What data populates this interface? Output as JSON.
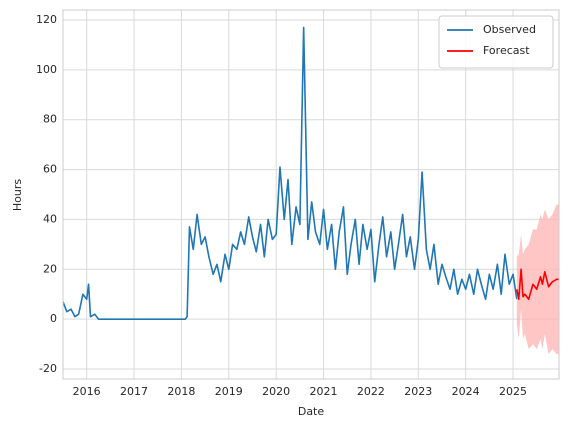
{
  "chart_data": {
    "type": "line",
    "x_label": "Date",
    "y_label": "Hours",
    "xlim": [
      2015.5,
      2025.97
    ],
    "xticks": [
      2016,
      2017,
      2018,
      2019,
      2020,
      2021,
      2022,
      2023,
      2024,
      2025
    ],
    "ylim": [
      -24,
      124
    ],
    "yticks": [
      -20,
      0,
      20,
      40,
      60,
      80,
      100,
      120
    ],
    "grid": true,
    "legend_position": "upper-right",
    "series": [
      {
        "name": "Observed",
        "color": "#1f77b4",
        "x": [
          2015.5,
          2015.58,
          2015.67,
          2015.75,
          2015.83,
          2015.92,
          2016.0,
          2016.04,
          2016.08,
          2016.17,
          2016.25,
          2018.08,
          2018.12,
          2018.17,
          2018.25,
          2018.33,
          2018.42,
          2018.5,
          2018.58,
          2018.67,
          2018.75,
          2018.83,
          2018.92,
          2019.0,
          2019.08,
          2019.17,
          2019.25,
          2019.33,
          2019.42,
          2019.5,
          2019.58,
          2019.67,
          2019.75,
          2019.83,
          2019.92,
          2020.0,
          2020.08,
          2020.17,
          2020.25,
          2020.33,
          2020.42,
          2020.5,
          2020.58,
          2020.67,
          2020.75,
          2020.83,
          2020.92,
          2021.0,
          2021.08,
          2021.17,
          2021.25,
          2021.33,
          2021.42,
          2021.5,
          2021.58,
          2021.67,
          2021.75,
          2021.83,
          2021.92,
          2022.0,
          2022.08,
          2022.17,
          2022.25,
          2022.33,
          2022.42,
          2022.5,
          2022.58,
          2022.67,
          2022.75,
          2022.83,
          2022.92,
          2023.0,
          2023.08,
          2023.17,
          2023.25,
          2023.33,
          2023.42,
          2023.5,
          2023.58,
          2023.67,
          2023.75,
          2023.83,
          2023.92,
          2024.0,
          2024.08,
          2024.17,
          2024.25,
          2024.33,
          2024.42,
          2024.5,
          2024.58,
          2024.67,
          2024.75,
          2024.83,
          2024.92,
          2025.0,
          2025.08
        ],
        "values": [
          7,
          3,
          4,
          1,
          2,
          10,
          8,
          14,
          1,
          2,
          0,
          0,
          1,
          37,
          28,
          42,
          30,
          33,
          25,
          18,
          22,
          15,
          26,
          20,
          30,
          28,
          35,
          30,
          41,
          33,
          27,
          38,
          25,
          40,
          32,
          34,
          61,
          40,
          56,
          30,
          45,
          38,
          117,
          32,
          47,
          35,
          30,
          44,
          28,
          38,
          20,
          35,
          45,
          18,
          30,
          40,
          22,
          38,
          28,
          36,
          15,
          30,
          41,
          25,
          35,
          20,
          30,
          42,
          25,
          33,
          20,
          32,
          59,
          28,
          20,
          30,
          14,
          22,
          17,
          12,
          20,
          10,
          16,
          12,
          18,
          10,
          20,
          14,
          8,
          18,
          12,
          22,
          10,
          26,
          14,
          18,
          8
        ]
      },
      {
        "name": "Forecast",
        "color": "#ff0000",
        "band_color": "#ffb3b3",
        "x": [
          2025.08,
          2025.12,
          2025.17,
          2025.21,
          2025.25,
          2025.33,
          2025.42,
          2025.5,
          2025.58,
          2025.62,
          2025.67,
          2025.75,
          2025.83,
          2025.92,
          2025.97
        ],
        "values": [
          12,
          8,
          20,
          9,
          10,
          8,
          14,
          12,
          17,
          14,
          19,
          13,
          15,
          16,
          16
        ],
        "lower": [
          -2,
          -8,
          4,
          -8,
          -6,
          -12,
          -10,
          -12,
          -8,
          -12,
          -6,
          -14,
          -12,
          -14,
          -14
        ],
        "upper": [
          25,
          26,
          34,
          26,
          28,
          30,
          36,
          36,
          42,
          40,
          44,
          40,
          42,
          46,
          46
        ]
      }
    ]
  }
}
